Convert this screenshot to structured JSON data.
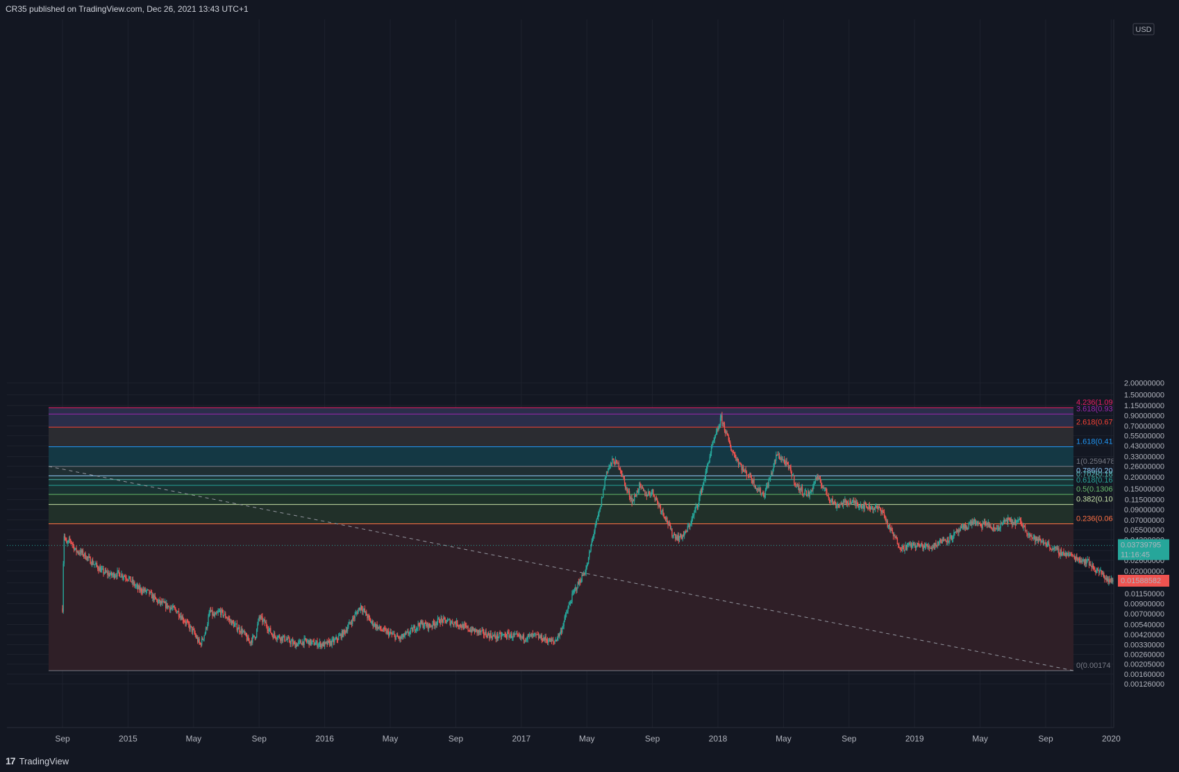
{
  "header": {
    "publisher": "CR35 published on TradingView.com, Dec 26, 2021 13:43 UTC+1"
  },
  "footer": {
    "brand": "TradingView"
  },
  "colors": {
    "up": "#26a69a",
    "down": "#ef5350",
    "bg": "#131722"
  },
  "chart_data": {
    "type": "candlestick",
    "scale": "log",
    "currency": "USD",
    "ylim": [
      0.00115,
      2.0
    ],
    "y_ticks": [
      {
        "value": 2.0,
        "label": "2.00000000"
      },
      {
        "value": 1.5,
        "label": "1.50000000"
      },
      {
        "value": 1.15,
        "label": "1.15000000"
      },
      {
        "value": 0.9,
        "label": "0.90000000"
      },
      {
        "value": 0.7,
        "label": "0.70000000"
      },
      {
        "value": 0.55,
        "label": "0.55000000"
      },
      {
        "value": 0.43,
        "label": "0.43000000"
      },
      {
        "value": 0.33,
        "label": "0.33000000"
      },
      {
        "value": 0.26,
        "label": "0.26000000"
      },
      {
        "value": 0.2,
        "label": "0.20000000"
      },
      {
        "value": 0.15,
        "label": "0.15000000"
      },
      {
        "value": 0.115,
        "label": "0.11500000"
      },
      {
        "value": 0.09,
        "label": "0.09000000"
      },
      {
        "value": 0.07,
        "label": "0.07000000"
      },
      {
        "value": 0.055,
        "label": "0.05500000"
      },
      {
        "value": 0.043,
        "label": "0.04300000"
      },
      {
        "value": 0.033,
        "label": "0.03300000"
      },
      {
        "value": 0.026,
        "label": "0.02600000"
      },
      {
        "value": 0.02,
        "label": "0.02000000"
      },
      {
        "value": 0.015,
        "label": "0.01500000"
      },
      {
        "value": 0.0115,
        "label": "0.01150000"
      },
      {
        "value": 0.009,
        "label": "0.00900000"
      },
      {
        "value": 0.007,
        "label": "0.00700000"
      },
      {
        "value": 0.0054,
        "label": "0.00540000"
      },
      {
        "value": 0.0042,
        "label": "0.00420000"
      },
      {
        "value": 0.0033,
        "label": "0.00330000"
      },
      {
        "value": 0.0026,
        "label": "0.00260000"
      },
      {
        "value": 0.00205,
        "label": "0.00205000"
      },
      {
        "value": 0.0016,
        "label": "0.00160000"
      },
      {
        "value": 0.00126,
        "label": "0.00126000"
      }
    ],
    "x_ticks": [
      {
        "t": 0,
        "label": "Sep"
      },
      {
        "t": 1,
        "label": "2015"
      },
      {
        "t": 2,
        "label": "May"
      },
      {
        "t": 3,
        "label": "Sep"
      },
      {
        "t": 4,
        "label": "2016"
      },
      {
        "t": 5,
        "label": "May"
      },
      {
        "t": 6,
        "label": "Sep"
      },
      {
        "t": 7,
        "label": "2017"
      },
      {
        "t": 8,
        "label": "May"
      },
      {
        "t": 9,
        "label": "Sep"
      },
      {
        "t": 10,
        "label": "2018"
      },
      {
        "t": 11,
        "label": "May"
      },
      {
        "t": 12,
        "label": "Sep"
      },
      {
        "t": 13,
        "label": "2019"
      },
      {
        "t": 14,
        "label": "May"
      },
      {
        "t": 15,
        "label": "Sep"
      },
      {
        "t": 16,
        "label": "2020"
      }
    ],
    "fib_levels": [
      {
        "label": "4.236(1.09",
        "value": 1.093,
        "color": "#e91e63",
        "fill": "#2a2e4a"
      },
      {
        "label": "3.618(0.93",
        "value": 0.935,
        "color": "#9c27b0",
        "fill": "#2a2e4a"
      },
      {
        "label": "2.618(0.67",
        "value": 0.678,
        "color": "#f44336",
        "fill": "#2a2e4a"
      },
      {
        "label": "1.618(0.41",
        "value": 0.42,
        "color": "#2196f3",
        "fill": "#2b2c31"
      },
      {
        "label": "1(0.259478",
        "value": 0.2595,
        "color": "#787b86",
        "fill": "#143844"
      },
      {
        "label": "0.786(0.20",
        "value": 0.206,
        "color": "#90caf9",
        "fill": "#1f2f33"
      },
      {
        "label": "0.702(0.18",
        "value": 0.188,
        "color": "#4db6ac",
        "fill": "#1c3536"
      },
      {
        "label": "0.618(0.16",
        "value": 0.163,
        "color": "#26a69a",
        "fill": "#183536"
      },
      {
        "label": "0.5(0.1306",
        "value": 0.1306,
        "color": "#66bb6a",
        "fill": "#193232"
      },
      {
        "label": "0.382(0.10",
        "value": 0.102,
        "color": "#c5e1a5",
        "fill": "#1d3129"
      },
      {
        "label": "0.236(0.06",
        "value": 0.0635,
        "color": "#ff7043",
        "fill": "#213029"
      },
      {
        "label": "0(0.00174",
        "value": 0.001743,
        "color": "#787b86",
        "fill": "#2f1f27"
      }
    ],
    "price_markers": [
      {
        "label": "0.03739795",
        "sublabel": "11:16:45",
        "value": 0.0374,
        "color": "#26a69a"
      },
      {
        "label": "0.01588582",
        "sublabel": "",
        "value": 0.01589,
        "color": "#ef5350"
      }
    ],
    "path_points": [
      [
        0.0,
        0.008
      ],
      [
        0.02,
        0.05
      ],
      [
        0.06,
        0.038
      ],
      [
        0.12,
        0.043
      ],
      [
        0.2,
        0.033
      ],
      [
        0.3,
        0.031
      ],
      [
        0.45,
        0.025
      ],
      [
        0.6,
        0.02
      ],
      [
        0.75,
        0.018
      ],
      [
        0.85,
        0.019
      ],
      [
        1.0,
        0.017
      ],
      [
        1.15,
        0.013
      ],
      [
        1.3,
        0.012
      ],
      [
        1.45,
        0.0095
      ],
      [
        1.6,
        0.0085
      ],
      [
        1.75,
        0.0075
      ],
      [
        1.9,
        0.0055
      ],
      [
        2.0,
        0.0045
      ],
      [
        2.05,
        0.0038
      ],
      [
        2.1,
        0.0033
      ],
      [
        2.18,
        0.0045
      ],
      [
        2.25,
        0.0075
      ],
      [
        2.32,
        0.0065
      ],
      [
        2.4,
        0.0075
      ],
      [
        2.5,
        0.0065
      ],
      [
        2.6,
        0.0055
      ],
      [
        2.75,
        0.0045
      ],
      [
        2.85,
        0.0035
      ],
      [
        2.95,
        0.0042
      ],
      [
        3.0,
        0.0065
      ],
      [
        3.1,
        0.0055
      ],
      [
        3.2,
        0.0042
      ],
      [
        3.4,
        0.0038
      ],
      [
        3.55,
        0.0033
      ],
      [
        3.7,
        0.0036
      ],
      [
        3.85,
        0.0034
      ],
      [
        4.0,
        0.0033
      ],
      [
        4.15,
        0.0036
      ],
      [
        4.3,
        0.0045
      ],
      [
        4.45,
        0.0065
      ],
      [
        4.55,
        0.0085
      ],
      [
        4.7,
        0.0058
      ],
      [
        4.85,
        0.0048
      ],
      [
        5.0,
        0.0043
      ],
      [
        5.15,
        0.0038
      ],
      [
        5.3,
        0.0045
      ],
      [
        5.45,
        0.0055
      ],
      [
        5.6,
        0.0052
      ],
      [
        5.75,
        0.006
      ],
      [
        5.9,
        0.0058
      ],
      [
        6.0,
        0.0056
      ],
      [
        6.2,
        0.0048
      ],
      [
        6.4,
        0.0044
      ],
      [
        6.6,
        0.004
      ],
      [
        6.8,
        0.0042
      ],
      [
        7.0,
        0.0039
      ],
      [
        7.2,
        0.0041
      ],
      [
        7.35,
        0.0038
      ],
      [
        7.5,
        0.0035
      ],
      [
        7.6,
        0.0045
      ],
      [
        7.7,
        0.0075
      ],
      [
        7.8,
        0.012
      ],
      [
        7.9,
        0.016
      ],
      [
        8.0,
        0.022
      ],
      [
        8.05,
        0.033
      ],
      [
        8.1,
        0.05
      ],
      [
        8.2,
        0.09
      ],
      [
        8.3,
        0.23
      ],
      [
        8.4,
        0.3
      ],
      [
        8.5,
        0.26
      ],
      [
        8.6,
        0.15
      ],
      [
        8.7,
        0.11
      ],
      [
        8.8,
        0.16
      ],
      [
        8.9,
        0.13
      ],
      [
        9.0,
        0.14
      ],
      [
        9.1,
        0.1
      ],
      [
        9.2,
        0.075
      ],
      [
        9.3,
        0.05
      ],
      [
        9.4,
        0.045
      ],
      [
        9.5,
        0.05
      ],
      [
        9.6,
        0.07
      ],
      [
        9.7,
        0.11
      ],
      [
        9.8,
        0.2
      ],
      [
        9.9,
        0.4
      ],
      [
        10.0,
        0.65
      ],
      [
        10.05,
        0.85
      ],
      [
        10.12,
        0.6
      ],
      [
        10.2,
        0.4
      ],
      [
        10.3,
        0.3
      ],
      [
        10.4,
        0.23
      ],
      [
        10.5,
        0.2
      ],
      [
        10.6,
        0.15
      ],
      [
        10.7,
        0.13
      ],
      [
        10.8,
        0.2
      ],
      [
        10.9,
        0.35
      ],
      [
        11.0,
        0.3
      ],
      [
        11.1,
        0.24
      ],
      [
        11.2,
        0.16
      ],
      [
        11.3,
        0.14
      ],
      [
        11.4,
        0.13
      ],
      [
        11.5,
        0.2
      ],
      [
        11.6,
        0.16
      ],
      [
        11.7,
        0.12
      ],
      [
        11.8,
        0.1
      ],
      [
        11.9,
        0.105
      ],
      [
        12.0,
        0.11
      ],
      [
        12.2,
        0.1
      ],
      [
        12.35,
        0.095
      ],
      [
        12.5,
        0.09
      ],
      [
        12.6,
        0.06
      ],
      [
        12.7,
        0.045
      ],
      [
        12.8,
        0.035
      ],
      [
        12.95,
        0.038
      ],
      [
        13.1,
        0.037
      ],
      [
        13.25,
        0.036
      ],
      [
        13.4,
        0.042
      ],
      [
        13.55,
        0.045
      ],
      [
        13.7,
        0.055
      ],
      [
        13.8,
        0.06
      ],
      [
        13.9,
        0.068
      ],
      [
        14.0,
        0.06
      ],
      [
        14.1,
        0.065
      ],
      [
        14.2,
        0.055
      ],
      [
        14.3,
        0.06
      ],
      [
        14.4,
        0.07
      ],
      [
        14.5,
        0.065
      ],
      [
        14.6,
        0.068
      ],
      [
        14.7,
        0.055
      ],
      [
        14.8,
        0.045
      ],
      [
        14.9,
        0.042
      ],
      [
        15.0,
        0.04
      ],
      [
        15.1,
        0.035
      ],
      [
        15.2,
        0.032
      ],
      [
        15.35,
        0.03
      ],
      [
        15.5,
        0.027
      ],
      [
        15.65,
        0.025
      ],
      [
        15.75,
        0.021
      ],
      [
        15.85,
        0.019
      ],
      [
        15.95,
        0.016
      ],
      [
        16.05,
        0.0155
      ],
      [
        16.12,
        0.0159
      ]
    ]
  }
}
